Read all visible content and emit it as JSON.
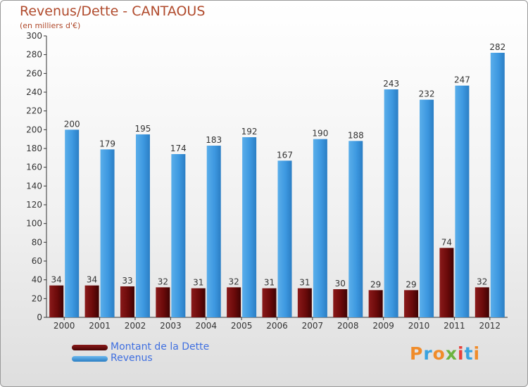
{
  "header": {
    "title": "Revenus/Dette - CANTAOUS",
    "subtitle": "(en milliers d'€)"
  },
  "colors": {
    "dette": "#6b0a0a",
    "revenus": "#3d98e0",
    "label_text": "#333333"
  },
  "chart_data": {
    "type": "bar",
    "title": "Revenus/Dette - CANTAOUS",
    "ylabel": "(en milliers d'€)",
    "categories": [
      "2000",
      "2001",
      "2002",
      "2003",
      "2004",
      "2005",
      "2006",
      "2007",
      "2008",
      "2009",
      "2010",
      "2011",
      "2012"
    ],
    "series": [
      {
        "name": "Montant de la Dette",
        "values": [
          34,
          34,
          33,
          32,
          31,
          32,
          31,
          31,
          30,
          29,
          29,
          74,
          32
        ]
      },
      {
        "name": "Revenus",
        "values": [
          200,
          179,
          195,
          174,
          183,
          192,
          167,
          190,
          188,
          243,
          232,
          247,
          282
        ]
      }
    ],
    "ylim": [
      0,
      300
    ],
    "yticks": [
      0,
      20,
      40,
      60,
      80,
      100,
      120,
      140,
      160,
      180,
      200,
      220,
      240,
      260,
      280,
      300
    ],
    "grid": false,
    "legend": "bottom-left"
  },
  "legend": {
    "items": [
      {
        "label": "Montant de la Dette",
        "color": "#6b0a0a"
      },
      {
        "label": "Revenus",
        "color": "#3d98e0"
      }
    ]
  },
  "logo": {
    "text": "Proxiti",
    "letter_colors": [
      "#f08c2a",
      "#3aa3e0",
      "#f08c2a",
      "#6cb33f",
      "#e8403a",
      "#3aa3e0",
      "#f08c2a"
    ]
  }
}
